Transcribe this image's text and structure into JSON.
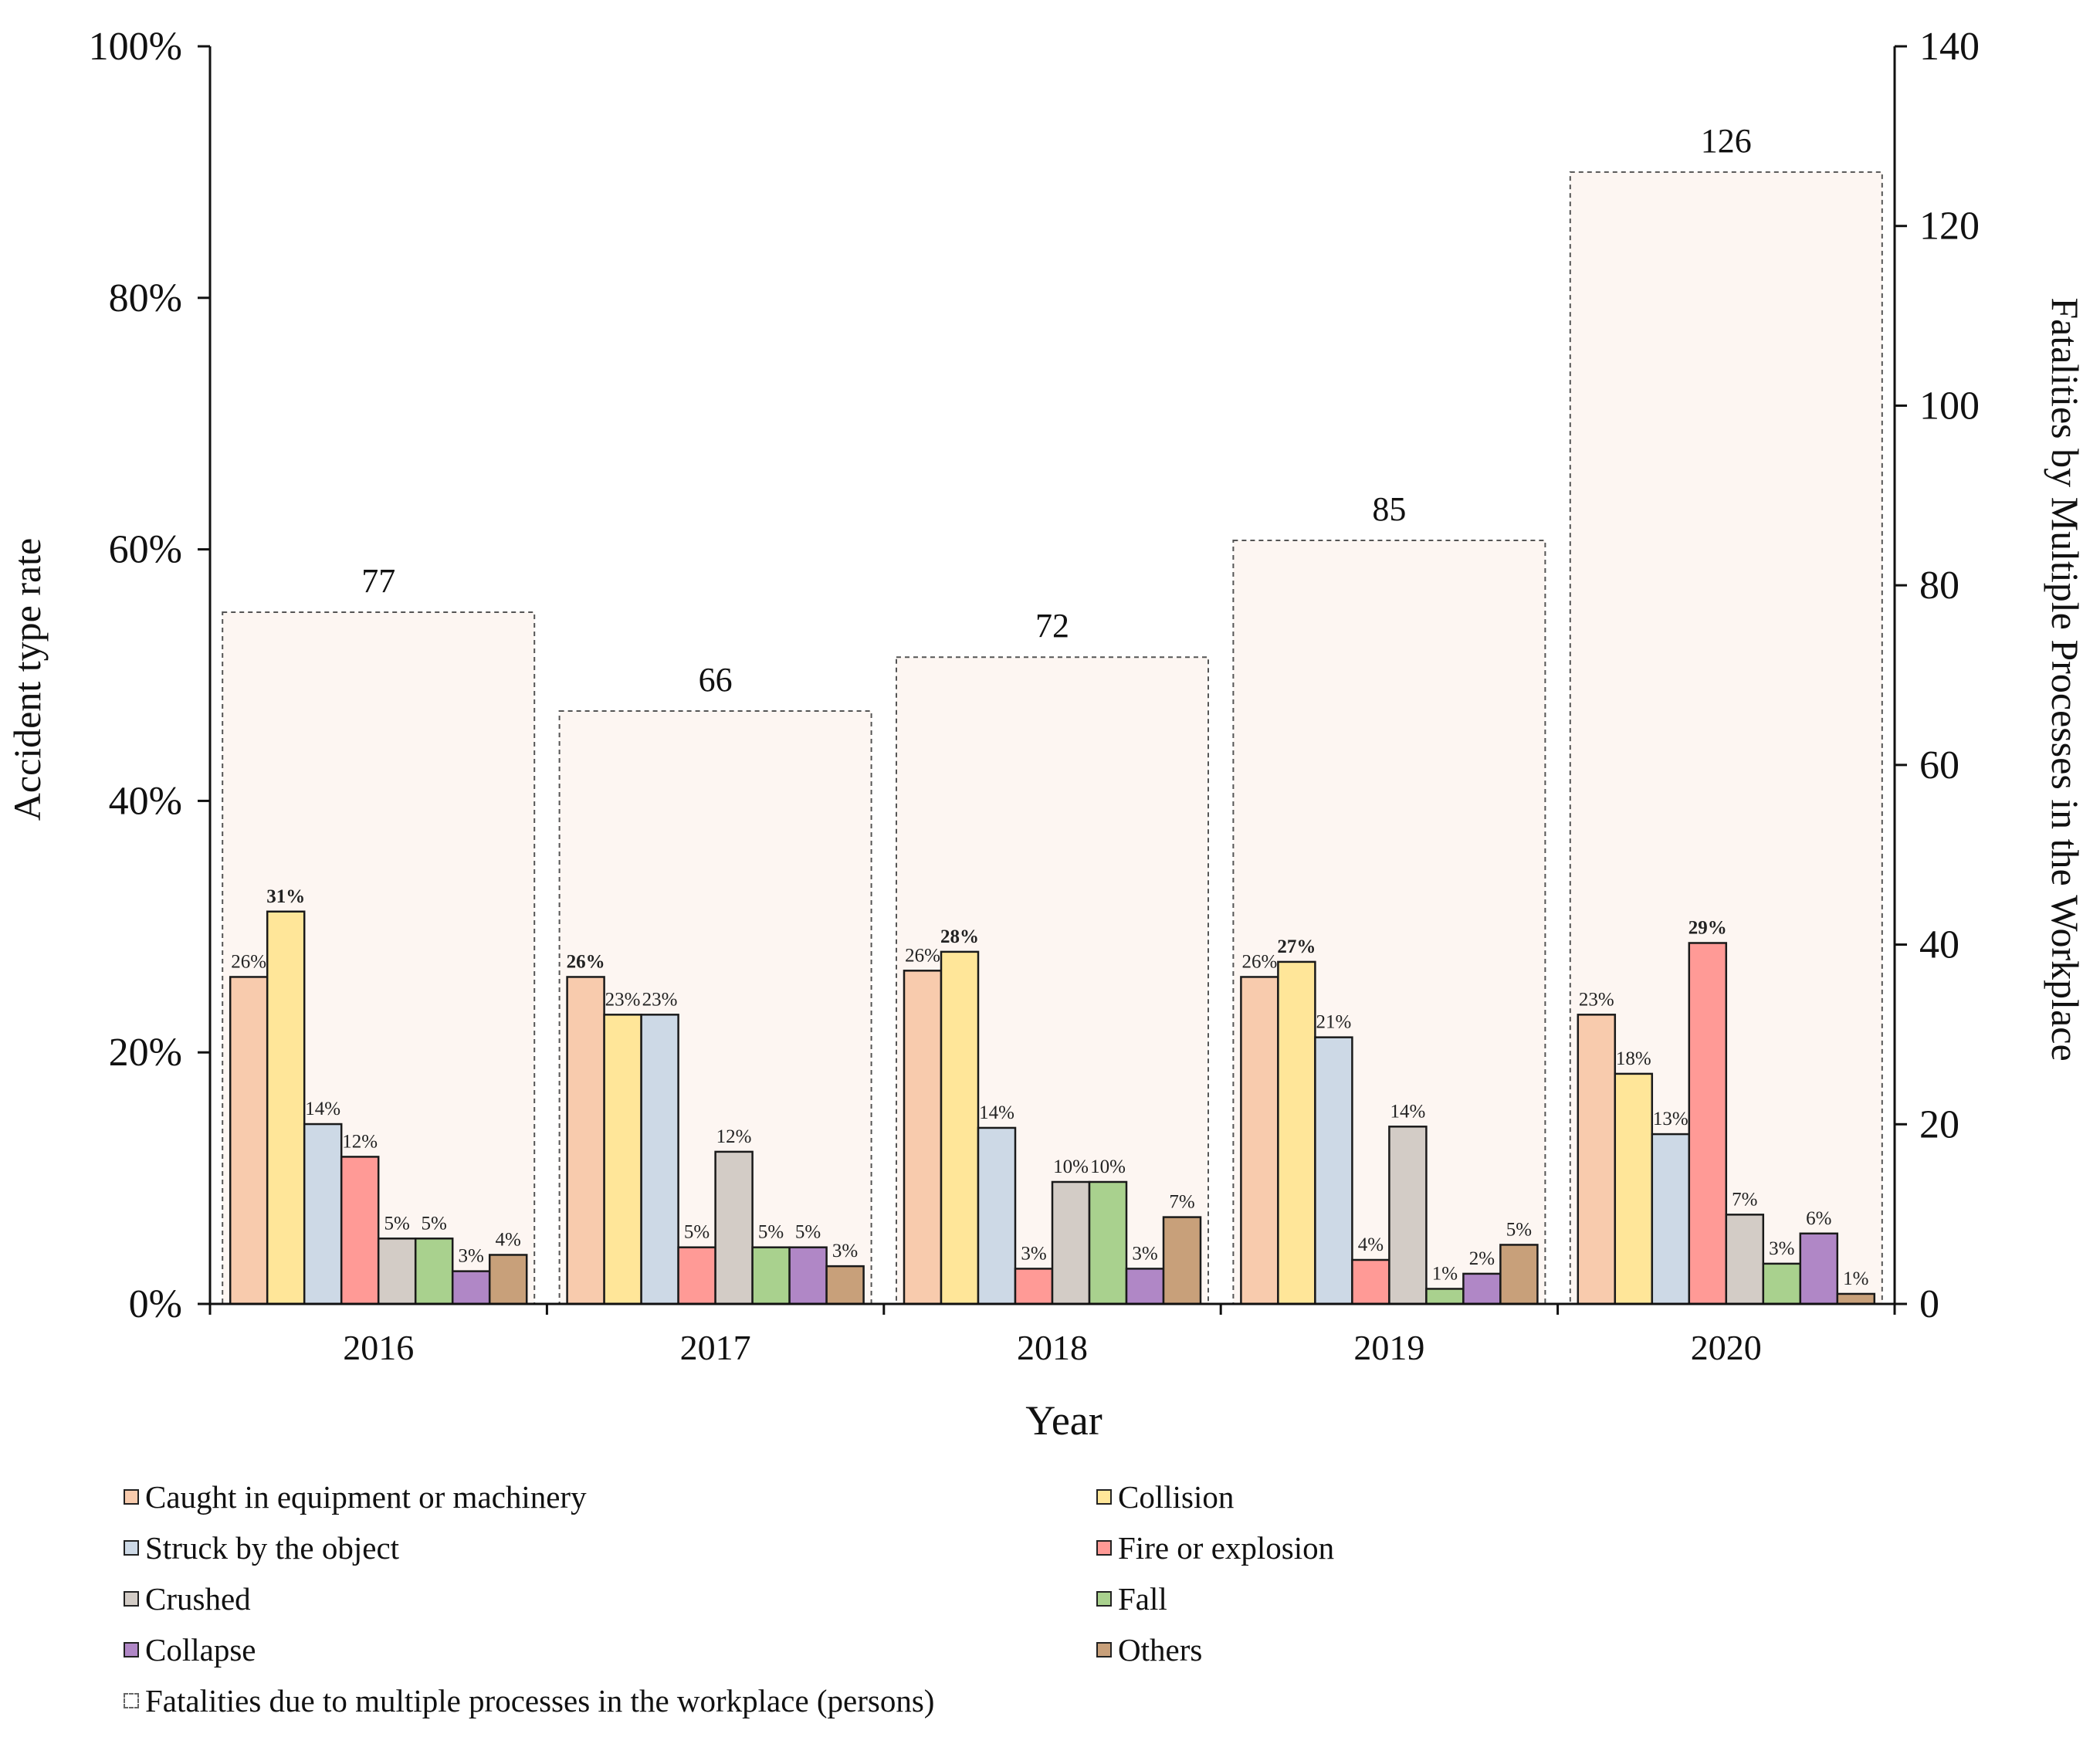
{
  "chart_data": {
    "type": "bar",
    "categories": [
      "2016",
      "2017",
      "2018",
      "2019",
      "2020"
    ],
    "xlabel": "Year",
    "ylabel": "Accident  type rate",
    "y2label": "Fatalities by Multiple Processes in the Workplace",
    "ylim": [
      0,
      100
    ],
    "y2lim": [
      0,
      140
    ],
    "yticks": [
      "0%",
      "20%",
      "40%",
      "60%",
      "80%",
      "100%"
    ],
    "y2ticks": [
      "0",
      "20",
      "40",
      "60",
      "80",
      "100",
      "120",
      "140"
    ],
    "series": [
      {
        "name": "Caught in equipment or machinery",
        "color": "#f8cbad",
        "values": [
          26,
          26,
          26.5,
          26,
          23
        ],
        "labels": [
          "26%",
          "26%",
          "26%",
          "26%",
          "23%"
        ],
        "bold": [
          false,
          true,
          false,
          false,
          false
        ]
      },
      {
        "name": "Collision",
        "color": "#ffe699",
        "values": [
          31.2,
          23,
          28,
          27.2,
          18.3
        ],
        "labels": [
          "31%",
          "23%",
          "28%",
          "27%",
          "18%"
        ],
        "bold": [
          true,
          false,
          true,
          true,
          false
        ]
      },
      {
        "name": "Struck by the object",
        "color": "#cdd9e6",
        "values": [
          14.3,
          23,
          14,
          21.2,
          13.5
        ],
        "labels": [
          "14%",
          "23%",
          "14%",
          "21%",
          "13%"
        ],
        "bold": [
          false,
          false,
          false,
          false,
          false
        ]
      },
      {
        "name": "Fire or explosion",
        "color": "#ff9a96",
        "values": [
          11.7,
          4.5,
          2.8,
          3.5,
          28.7
        ],
        "labels": [
          "12%",
          "5%",
          "3%",
          "4%",
          "29%"
        ],
        "bold": [
          false,
          false,
          false,
          false,
          true
        ]
      },
      {
        "name": "Crushed",
        "color": "#d3ccc6",
        "values": [
          5.2,
          12.1,
          9.7,
          14.1,
          7.1
        ],
        "labels": [
          "5%",
          "12%",
          "10%",
          "14%",
          "7%"
        ],
        "bold": [
          false,
          false,
          false,
          false,
          false
        ]
      },
      {
        "name": "Fall",
        "color": "#a9d18e",
        "values": [
          5.2,
          4.5,
          9.7,
          1.2,
          3.2
        ],
        "labels": [
          "5%",
          "5%",
          "10%",
          "1%",
          "3%"
        ],
        "bold": [
          false,
          false,
          false,
          false,
          false
        ]
      },
      {
        "name": "Collapse",
        "color": "#b087c6",
        "values": [
          2.6,
          4.5,
          2.8,
          2.4,
          5.6
        ],
        "labels": [
          "3%",
          "5%",
          "3%",
          "2%",
          "6%"
        ],
        "bold": [
          false,
          false,
          false,
          false,
          false
        ]
      },
      {
        "name": "Others",
        "color": "#c8a07a",
        "values": [
          3.9,
          3,
          6.9,
          4.7,
          0.8
        ],
        "labels": [
          "4%",
          "3%",
          "7%",
          "5%",
          "1%"
        ],
        "bold": [
          false,
          false,
          false,
          false,
          false
        ]
      }
    ],
    "fatalities": {
      "name": "Fatalities due to multiple processes in the workplace (persons)",
      "values": [
        77,
        66,
        72,
        85,
        126
      ],
      "labels": [
        "77",
        "66",
        "72",
        "85",
        "126"
      ],
      "fill": "#fdf6f2"
    }
  }
}
